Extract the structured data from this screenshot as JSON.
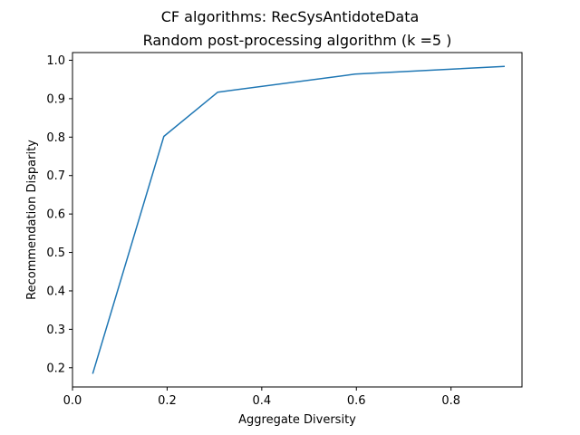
{
  "chart_data": {
    "type": "line",
    "title": "CF algorithms: RecSysAntidoteData",
    "subtitle": "Random post-processing algorithm (k =5 )",
    "xlabel": "Aggregate Diversity",
    "ylabel": "Recommendation Disparity",
    "xlim": [
      0.0,
      0.95
    ],
    "ylim": [
      0.15,
      1.02
    ],
    "xticks": [
      0.0,
      0.2,
      0.4,
      0.6,
      0.8
    ],
    "xtick_labels": [
      "0.0",
      "0.2",
      "0.4",
      "0.6",
      "0.8"
    ],
    "yticks": [
      0.2,
      0.3,
      0.4,
      0.5,
      0.6,
      0.7,
      0.8,
      0.9,
      1.0
    ],
    "ytick_labels": [
      "0.2",
      "0.3",
      "0.4",
      "0.5",
      "0.6",
      "0.7",
      "0.8",
      "0.9",
      "1.0"
    ],
    "grid": false,
    "color": "#1f77b4",
    "series": [
      {
        "x": [
          0.043,
          0.193,
          0.307,
          0.597,
          0.912
        ],
        "y": [
          0.186,
          0.802,
          0.917,
          0.964,
          0.984
        ]
      }
    ]
  }
}
